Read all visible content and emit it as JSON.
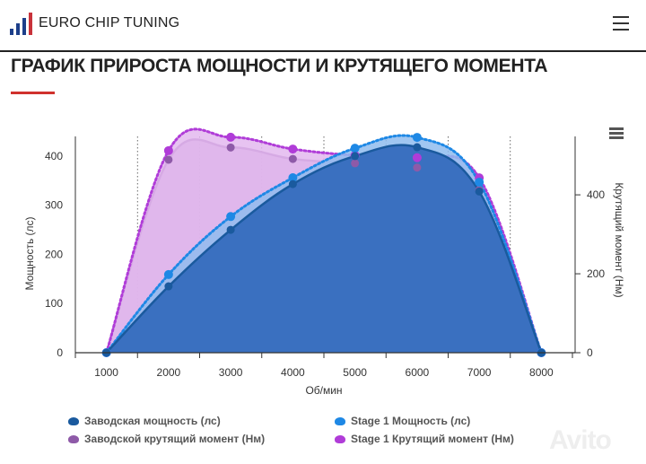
{
  "header": {
    "brand": "EURO CHIP TUNING",
    "menu_icon": "hamburger-icon"
  },
  "page": {
    "title": "ГРАФИК ПРИРОСТА МОЩНОСТИ И КРУТЯЩЕГО МОМЕНТА",
    "accent": "#d0312d"
  },
  "watermark": "Avito",
  "chart_data": {
    "type": "area",
    "xlabel": "Об/мин",
    "ylabel_left": "Мощность (лс)",
    "ylabel_right": "Крутящий момент (Нм)",
    "x": [
      1000,
      2000,
      3000,
      4000,
      5000,
      6000,
      7000,
      8000
    ],
    "x_ticks": [
      "1000",
      "2000",
      "3000",
      "4000",
      "5000",
      "6000",
      "7000",
      "8000"
    ],
    "xlim": [
      500,
      8500
    ],
    "ylim_left": [
      0,
      440
    ],
    "ylim_right": [
      0,
      548
    ],
    "y_ticks_left": [
      "0",
      "100",
      "200",
      "300",
      "400"
    ],
    "y_ticks_right": [
      "0",
      "200",
      "400"
    ],
    "grid": "vertical dotted",
    "legend_placement": "bottom",
    "series": [
      {
        "name": "Заводская мощность (лс)",
        "axis": "left",
        "style": "solid",
        "color": "#1a5a9e",
        "fill": "#3a70c0",
        "values": [
          0,
          135,
          250,
          343,
          400,
          418,
          328,
          0
        ]
      },
      {
        "name": "Заводской крутящий момент (Нм)",
        "axis": "right",
        "style": "solid",
        "color": "#8e5aa8",
        "fill": "#c9a0d9",
        "values": [
          0,
          489,
          520,
          491,
          480,
          469,
          412,
          0
        ]
      },
      {
        "name": "Stage 1 Мощность (лс)",
        "axis": "left",
        "style": "dotted",
        "color": "#1e88e5",
        "fill": "#8fbcef",
        "values": [
          0,
          159,
          277,
          356,
          416,
          438,
          347,
          0
        ]
      },
      {
        "name": "Stage 1 Крутящий момент (Нм)",
        "axis": "right",
        "style": "dotted",
        "color": "#b03cd8",
        "fill": "#e3b9ef",
        "values": [
          0,
          512,
          546,
          516,
          500,
          494,
          443,
          0
        ]
      }
    ]
  }
}
